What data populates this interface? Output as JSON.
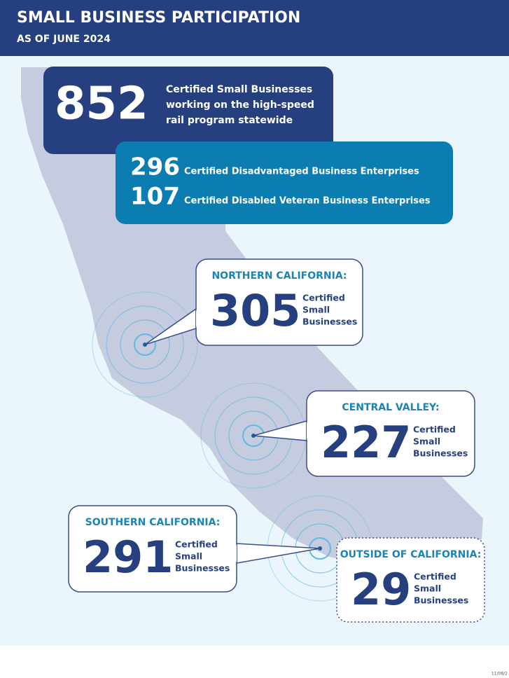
{
  "header": {
    "title": "SMALL BUSINESS PARTICIPATION",
    "subtitle": "AS OF JUNE 2024"
  },
  "statewide": {
    "value": "852",
    "lines": [
      "Certified Small Businesses",
      "working on the high-speed",
      "rail program statewide"
    ]
  },
  "groups": [
    {
      "value": "296",
      "label": "Certified Disadvantaged Business Enterprises"
    },
    {
      "value": "107",
      "label": "Certified Disabled Veteran Business Enterprises"
    }
  ],
  "regions": [
    {
      "name": "NORTHERN CALIFORNIA:",
      "value": "305",
      "lines": [
        "Certified",
        "Small",
        "Businesses"
      ]
    },
    {
      "name": "CENTRAL VALLEY:",
      "value": "227",
      "lines": [
        "Certified",
        "Small",
        "Businesses"
      ]
    },
    {
      "name": "SOUTHERN CALIFORNIA:",
      "value": "291",
      "lines": [
        "Certified",
        "Small",
        "Businesses"
      ]
    },
    {
      "name": "OUTSIDE OF CALIFORNIA:",
      "value": "29",
      "lines": [
        "Certified",
        "Small",
        "Businesses"
      ]
    }
  ],
  "footer": "11/08/2"
}
